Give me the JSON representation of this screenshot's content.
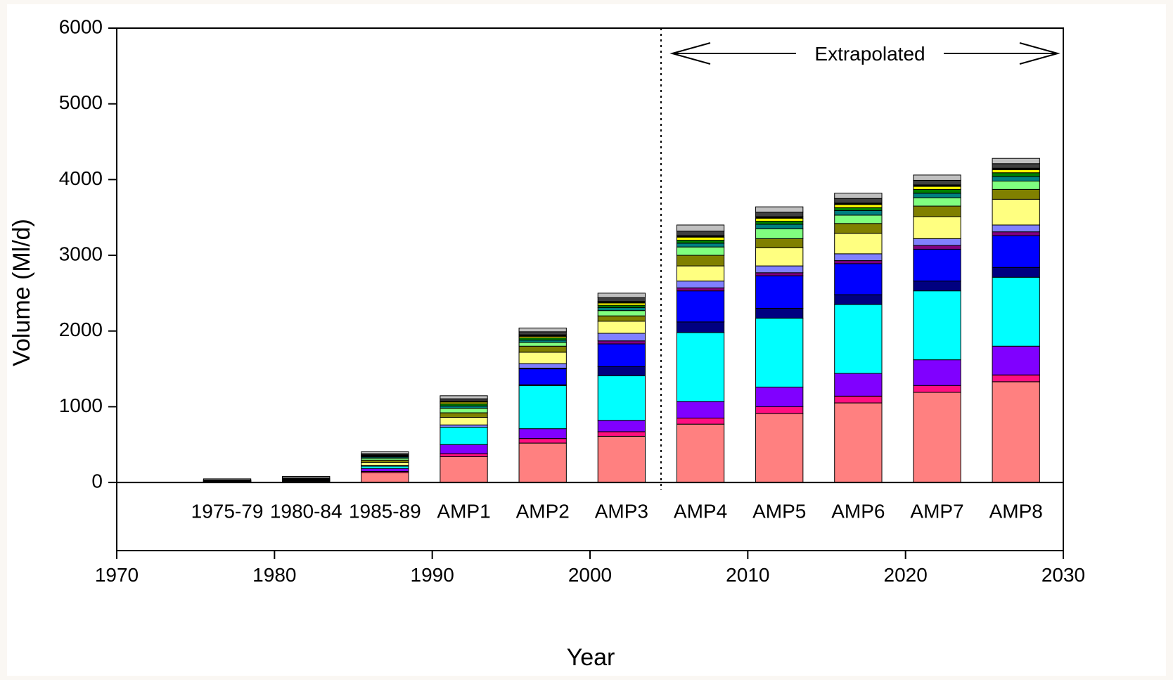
{
  "chart_data": {
    "type": "bar",
    "stacked": true,
    "title": "",
    "xlabel": "Year",
    "ylabel": "Volume (Ml/d)",
    "ylim": [
      -900,
      6000
    ],
    "xlim": [
      1970,
      2030
    ],
    "y_ticks": [
      0,
      1000,
      2000,
      3000,
      4000,
      5000,
      6000
    ],
    "x_ticks": [
      1970,
      1980,
      1990,
      2000,
      2010,
      2020,
      2030
    ],
    "grid": false,
    "legend": "none",
    "categories": [
      "1975-79",
      "1980-84",
      "1985-89",
      "AMP1",
      "AMP2",
      "AMP3",
      "AMP4",
      "AMP5",
      "AMP6",
      "AMP7",
      "AMP8"
    ],
    "category_x": [
      1977,
      1982,
      1987,
      1992,
      1997,
      2002,
      2007,
      2012,
      2017,
      2022,
      2027
    ],
    "bar_width_years": 3,
    "series": [
      {
        "color": "#ff8080",
        "values": [
          0,
          0,
          130,
          340,
          520,
          610,
          770,
          910,
          1050,
          1190,
          1330
        ]
      },
      {
        "color": "#ff0f80",
        "values": [
          0,
          0,
          15,
          40,
          60,
          60,
          80,
          90,
          90,
          90,
          90
        ]
      },
      {
        "color": "#8000ff",
        "values": [
          0,
          5,
          40,
          120,
          130,
          150,
          220,
          260,
          300,
          340,
          380
        ]
      },
      {
        "color": "#00ffff",
        "values": [
          5,
          5,
          30,
          230,
          570,
          590,
          910,
          910,
          910,
          910,
          910
        ]
      },
      {
        "color": "#8080ff",
        "values": [
          0,
          0,
          10,
          30,
          10,
          0,
          0,
          0,
          0,
          0,
          0
        ]
      },
      {
        "color": "#000080",
        "values": [
          0,
          0,
          0,
          0,
          0,
          120,
          140,
          130,
          130,
          130,
          130
        ]
      },
      {
        "color": "#0000ff",
        "values": [
          0,
          0,
          0,
          0,
          210,
          300,
          410,
          430,
          410,
          420,
          420
        ]
      },
      {
        "color": "#800080",
        "values": [
          0,
          0,
          0,
          0,
          10,
          40,
          40,
          40,
          40,
          50,
          50
        ]
      },
      {
        "color": "#8080ff",
        "values": [
          0,
          0,
          0,
          0,
          60,
          100,
          90,
          90,
          90,
          90,
          90
        ]
      },
      {
        "color": "#ffff80",
        "values": [
          5,
          10,
          40,
          100,
          150,
          160,
          200,
          240,
          270,
          290,
          340
        ]
      },
      {
        "color": "#808000",
        "values": [
          3,
          5,
          30,
          60,
          80,
          70,
          140,
          120,
          130,
          140,
          130
        ]
      },
      {
        "color": "#80ff80",
        "values": [
          3,
          5,
          25,
          60,
          50,
          70,
          110,
          130,
          110,
          110,
          110
        ]
      },
      {
        "color": "#008080",
        "values": [
          3,
          5,
          15,
          30,
          30,
          40,
          50,
          60,
          60,
          60,
          60
        ]
      },
      {
        "color": "#008000",
        "values": [
          3,
          5,
          10,
          30,
          30,
          30,
          40,
          40,
          40,
          50,
          50
        ]
      },
      {
        "color": "#ffff00",
        "values": [
          3,
          5,
          10,
          20,
          20,
          30,
          40,
          40,
          40,
          40,
          40
        ]
      },
      {
        "color": "#000000",
        "values": [
          3,
          5,
          10,
          15,
          20,
          20,
          20,
          20,
          20,
          20,
          20
        ]
      },
      {
        "color": "#404040",
        "values": [
          5,
          10,
          15,
          30,
          40,
          50,
          60,
          60,
          60,
          60,
          60
        ]
      },
      {
        "color": "#c0c0c0",
        "values": [
          15,
          20,
          25,
          40,
          50,
          60,
          80,
          70,
          70,
          70,
          70
        ]
      }
    ],
    "divider_x": 2004.5,
    "annotations": [
      {
        "text": "Extrapolated"
      }
    ]
  }
}
